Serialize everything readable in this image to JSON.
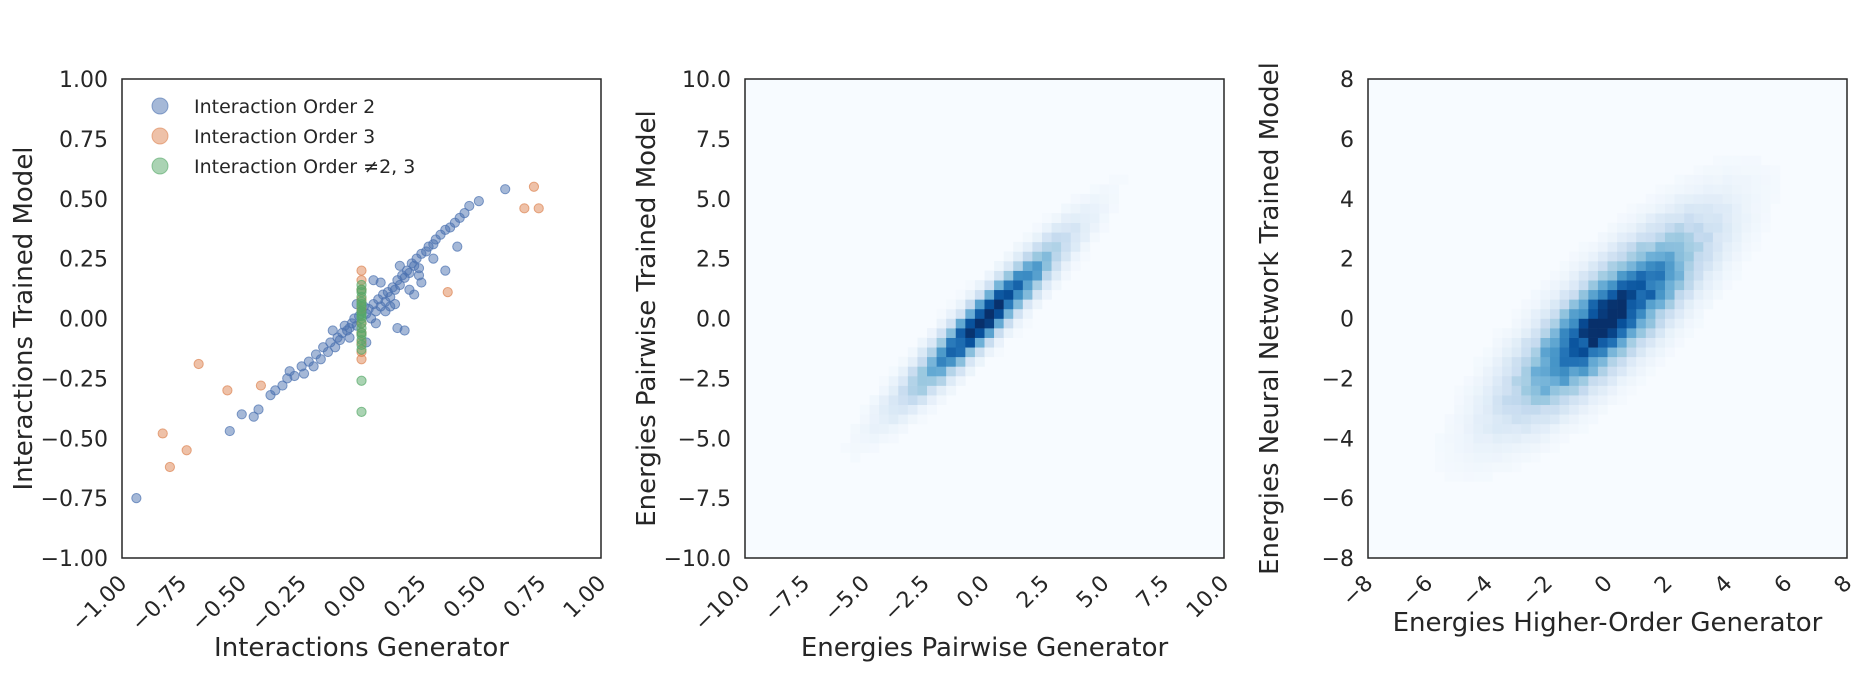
{
  "chart_data": [
    {
      "type": "scatter",
      "xlabel": "Interactions Generator",
      "ylabel": "Interactions Trained Model",
      "xlim": [
        -1.0,
        1.0
      ],
      "ylim": [
        -1.0,
        1.0
      ],
      "xticks": [
        "−1.00",
        "−0.75",
        "−0.50",
        "−0.25",
        "0.00",
        "0.25",
        "0.50",
        "0.75",
        "1.00"
      ],
      "yticks": [
        "−1.00",
        "−0.75",
        "−0.50",
        "−0.25",
        "0.00",
        "0.25",
        "0.50",
        "0.75",
        "1.00"
      ],
      "grid": false,
      "legend_position": "top-left",
      "series": [
        {
          "name": "Interaction Order 2",
          "color": "#4c72b0",
          "points": [
            [
              -0.94,
              -0.75
            ],
            [
              -0.55,
              -0.47
            ],
            [
              -0.5,
              -0.4
            ],
            [
              -0.45,
              -0.41
            ],
            [
              -0.43,
              -0.38
            ],
            [
              -0.38,
              -0.32
            ],
            [
              -0.36,
              -0.3
            ],
            [
              -0.33,
              -0.28
            ],
            [
              -0.31,
              -0.25
            ],
            [
              -0.3,
              -0.22
            ],
            [
              -0.28,
              -0.24
            ],
            [
              -0.25,
              -0.2
            ],
            [
              -0.24,
              -0.23
            ],
            [
              -0.22,
              -0.18
            ],
            [
              -0.2,
              -0.2
            ],
            [
              -0.19,
              -0.15
            ],
            [
              -0.17,
              -0.17
            ],
            [
              -0.16,
              -0.12
            ],
            [
              -0.14,
              -0.14
            ],
            [
              -0.13,
              -0.1
            ],
            [
              -0.12,
              -0.05
            ],
            [
              -0.11,
              -0.12
            ],
            [
              -0.1,
              -0.08
            ],
            [
              -0.09,
              -0.09
            ],
            [
              -0.08,
              -0.06
            ],
            [
              -0.07,
              -0.03
            ],
            [
              -0.06,
              -0.05
            ],
            [
              -0.05,
              -0.04
            ],
            [
              -0.04,
              -0.02
            ],
            [
              -0.03,
              0.0
            ],
            [
              -0.02,
              -0.03
            ],
            [
              -0.01,
              0.01
            ],
            [
              0.0,
              0.03
            ],
            [
              0.01,
              0.05
            ],
            [
              0.02,
              0.02
            ],
            [
              0.03,
              0.04
            ],
            [
              0.04,
              0.0
            ],
            [
              0.05,
              0.06
            ],
            [
              0.06,
              0.03
            ],
            [
              0.07,
              0.08
            ],
            [
              0.08,
              0.05
            ],
            [
              0.09,
              0.1
            ],
            [
              0.1,
              0.07
            ],
            [
              0.11,
              0.11
            ],
            [
              0.12,
              0.09
            ],
            [
              0.13,
              0.13
            ],
            [
              0.14,
              0.12
            ],
            [
              0.15,
              0.16
            ],
            [
              0.16,
              0.14
            ],
            [
              0.17,
              0.18
            ],
            [
              0.18,
              0.17
            ],
            [
              0.19,
              0.2
            ],
            [
              0.2,
              0.19
            ],
            [
              0.21,
              0.23
            ],
            [
              0.22,
              0.22
            ],
            [
              0.23,
              0.25
            ],
            [
              0.24,
              0.21
            ],
            [
              0.25,
              0.27
            ],
            [
              0.27,
              0.28
            ],
            [
              0.28,
              0.3
            ],
            [
              0.3,
              0.31
            ],
            [
              0.31,
              0.33
            ],
            [
              0.33,
              0.35
            ],
            [
              0.35,
              0.37
            ],
            [
              0.37,
              0.38
            ],
            [
              0.39,
              0.4
            ],
            [
              0.41,
              0.42
            ],
            [
              0.43,
              0.44
            ],
            [
              0.45,
              0.47
            ],
            [
              0.49,
              0.49
            ],
            [
              0.6,
              0.54
            ],
            [
              0.15,
              -0.04
            ],
            [
              0.18,
              -0.05
            ],
            [
              0.05,
              0.16
            ],
            [
              0.08,
              0.15
            ],
            [
              0.12,
              0.05
            ],
            [
              0.1,
              0.03
            ],
            [
              0.2,
              0.12
            ],
            [
              0.25,
              0.15
            ],
            [
              0.3,
              0.25
            ],
            [
              0.35,
              0.2
            ],
            [
              0.4,
              0.3
            ],
            [
              0.02,
              -0.1
            ],
            [
              -0.05,
              -0.08
            ],
            [
              0.16,
              0.22
            ],
            [
              0.22,
              0.1
            ],
            [
              0.14,
              0.06
            ],
            [
              0.06,
              -0.02
            ],
            [
              -0.02,
              0.06
            ],
            [
              0.24,
              0.18
            ]
          ]
        },
        {
          "name": "Interaction Order 3",
          "color": "#dd8452",
          "points": [
            [
              -0.83,
              -0.48
            ],
            [
              -0.8,
              -0.62
            ],
            [
              -0.73,
              -0.55
            ],
            [
              -0.68,
              -0.19
            ],
            [
              -0.56,
              -0.3
            ],
            [
              -0.42,
              -0.28
            ],
            [
              0.36,
              0.11
            ],
            [
              0.68,
              0.46
            ],
            [
              0.72,
              0.55
            ],
            [
              0.74,
              0.46
            ],
            [
              0.0,
              0.2
            ],
            [
              0.0,
              0.12
            ],
            [
              0.0,
              0.08
            ],
            [
              0.0,
              0.04
            ],
            [
              0.0,
              -0.02
            ],
            [
              0.0,
              -0.06
            ],
            [
              0.0,
              -0.1
            ],
            [
              0.0,
              -0.14
            ],
            [
              0.0,
              -0.17
            ],
            [
              0.0,
              0.16
            ]
          ]
        },
        {
          "name": "Interaction Order ≠2, 3",
          "color": "#55a868",
          "points": [
            [
              0.0,
              -0.39
            ],
            [
              0.0,
              -0.26
            ],
            [
              0.0,
              -0.13
            ],
            [
              0.0,
              -0.09
            ],
            [
              0.0,
              -0.06
            ],
            [
              0.0,
              -0.04
            ],
            [
              0.0,
              -0.02
            ],
            [
              0.0,
              0.0
            ],
            [
              0.0,
              0.01
            ],
            [
              0.0,
              0.02
            ],
            [
              0.0,
              0.03
            ],
            [
              0.0,
              0.05
            ],
            [
              0.0,
              0.06
            ],
            [
              0.0,
              0.07
            ],
            [
              0.0,
              0.09
            ],
            [
              0.0,
              0.11
            ],
            [
              0.0,
              0.12
            ],
            [
              0.0,
              0.14
            ],
            [
              0.0,
              -0.07
            ],
            [
              0.0,
              -0.11
            ]
          ]
        }
      ]
    },
    {
      "type": "heatmap",
      "xlabel": "Energies Pairwise Generator",
      "ylabel": "Energies Pairwise Trained Model",
      "xlim": [
        -10.0,
        10.0
      ],
      "ylim": [
        -10.0,
        10.0
      ],
      "xticks": [
        "−10.0",
        "−7.5",
        "−5.0",
        "−2.5",
        "0.0",
        "2.5",
        "5.0",
        "7.5",
        "10.0"
      ],
      "yticks": [
        "−10.0",
        "−7.5",
        "−5.0",
        "−2.5",
        "0.0",
        "2.5",
        "5.0",
        "7.5",
        "10.0"
      ],
      "colormap": "Blues",
      "bins": 50,
      "distribution": {
        "slope": 1.0,
        "spread_along": 2.6,
        "spread_across": 0.45,
        "peak": [
          0.0,
          0.0
        ]
      }
    },
    {
      "type": "heatmap",
      "xlabel": "Energies Higher-Order Generator",
      "ylabel": "Energies Neural Network Trained Model",
      "xlim": [
        -8,
        8
      ],
      "ylim": [
        -8,
        8
      ],
      "xticks": [
        "−8",
        "−6",
        "−4",
        "−2",
        "0",
        "2",
        "4",
        "6",
        "8"
      ],
      "yticks": [
        "−8",
        "−6",
        "−4",
        "−2",
        "0",
        "2",
        "4",
        "6",
        "8"
      ],
      "colormap": "Blues",
      "bins": 50,
      "distribution": {
        "slope": 0.95,
        "spread_along": 2.4,
        "spread_across": 0.75,
        "peak": [
          0.0,
          0.0
        ]
      }
    }
  ]
}
